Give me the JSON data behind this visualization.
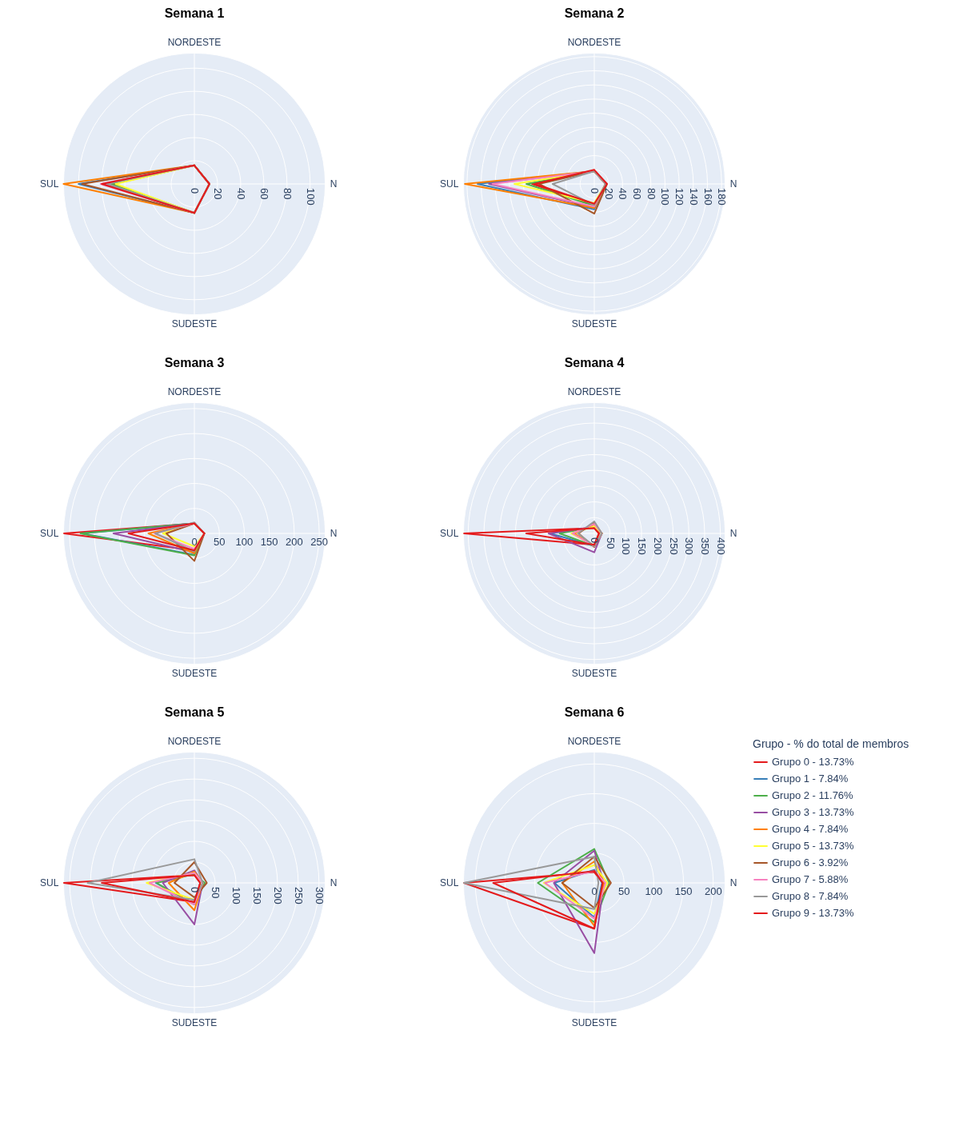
{
  "chart_data": [
    {
      "type": "radar",
      "title": "Semana 1",
      "categories": [
        "NORDESTE",
        "N",
        "SUDESTE",
        "SUL"
      ],
      "ylim": [
        0,
        113
      ],
      "yticks": [
        0,
        20,
        40,
        60,
        80,
        100
      ],
      "grid": true,
      "series": [
        {
          "color": "#e41a1c",
          "values": [
            16,
            13,
            25,
            70
          ]
        },
        {
          "color": "#377eb8",
          "values": [
            16,
            13,
            25,
            100
          ]
        },
        {
          "color": "#4daf4a",
          "values": [
            16,
            13,
            25,
            72
          ]
        },
        {
          "color": "#984ea3",
          "values": [
            16,
            13,
            25,
            79
          ]
        },
        {
          "color": "#ff7f00",
          "values": [
            16,
            13,
            25,
            113
          ]
        },
        {
          "color": "#ffff33",
          "values": [
            16,
            13,
            25,
            68
          ]
        },
        {
          "color": "#a65628",
          "values": [
            16,
            13,
            25,
            97
          ]
        },
        {
          "color": "#f781bf",
          "values": [
            16,
            13,
            25,
            81
          ]
        },
        {
          "color": "#999999",
          "values": [
            16,
            13,
            25,
            75
          ]
        },
        {
          "color": "#e41a1c",
          "values": [
            16,
            13,
            25,
            80
          ]
        }
      ]
    },
    {
      "type": "radar",
      "title": "Semana 2",
      "categories": [
        "NORDESTE",
        "N",
        "SUDESTE",
        "SUL"
      ],
      "ylim": [
        0,
        185
      ],
      "yticks": [
        0,
        20,
        40,
        60,
        80,
        100,
        120,
        140,
        160,
        180
      ],
      "grid": true,
      "series": [
        {
          "color": "#e41a1c",
          "values": [
            18,
            16,
            30,
            88
          ]
        },
        {
          "color": "#377eb8",
          "values": [
            18,
            16,
            36,
            165
          ]
        },
        {
          "color": "#4daf4a",
          "values": [
            18,
            16,
            31,
            96
          ]
        },
        {
          "color": "#984ea3",
          "values": [
            18,
            16,
            33,
            149
          ]
        },
        {
          "color": "#ff7f00",
          "values": [
            18,
            16,
            34,
            183
          ]
        },
        {
          "color": "#ffff33",
          "values": [
            18,
            16,
            27,
            113
          ]
        },
        {
          "color": "#a65628",
          "values": [
            18,
            18,
            42,
            78
          ]
        },
        {
          "color": "#f781bf",
          "values": [
            18,
            16,
            32,
            144
          ]
        },
        {
          "color": "#999999",
          "values": [
            18,
            16,
            30,
            59
          ]
        },
        {
          "color": "#e41a1c",
          "values": [
            20,
            18,
            28,
            84
          ]
        }
      ]
    },
    {
      "type": "radar",
      "title": "Semana 3",
      "categories": [
        "NORDESTE",
        "N",
        "SUDESTE",
        "SUL"
      ],
      "ylim": [
        0,
        262
      ],
      "yticks": [
        0,
        50,
        100,
        150,
        200,
        250
      ],
      "grid": true,
      "series": [
        {
          "color": "#e41a1c",
          "values": [
            20,
            20,
            34,
            261
          ]
        },
        {
          "color": "#377eb8",
          "values": [
            20,
            20,
            43,
            225
          ]
        },
        {
          "color": "#4daf4a",
          "values": [
            20,
            20,
            44,
            228
          ]
        },
        {
          "color": "#984ea3",
          "values": [
            20,
            20,
            38,
            162
          ]
        },
        {
          "color": "#ff7f00",
          "values": [
            20,
            20,
            40,
            92
          ]
        },
        {
          "color": "#ffff33",
          "values": [
            20,
            20,
            26,
            63
          ]
        },
        {
          "color": "#a65628",
          "values": [
            20,
            20,
            55,
            56
          ]
        },
        {
          "color": "#f781bf",
          "values": [
            20,
            20,
            31,
            80
          ]
        },
        {
          "color": "#999999",
          "values": [
            22,
            20,
            36,
            78
          ]
        },
        {
          "color": "#e41a1c",
          "values": [
            20,
            20,
            34,
            132
          ]
        }
      ]
    },
    {
      "type": "radar",
      "title": "Semana 4",
      "categories": [
        "NORDESTE",
        "N",
        "SUDESTE",
        "SUL"
      ],
      "ylim": [
        0,
        415
      ],
      "yticks": [
        0,
        50,
        100,
        150,
        200,
        250,
        300,
        350,
        400
      ],
      "grid": true,
      "series": [
        {
          "color": "#e41a1c",
          "values": [
            17,
            15,
            36,
            413
          ]
        },
        {
          "color": "#377eb8",
          "values": [
            20,
            24,
            40,
            140
          ]
        },
        {
          "color": "#4daf4a",
          "values": [
            20,
            24,
            40,
            110
          ]
        },
        {
          "color": "#984ea3",
          "values": [
            20,
            24,
            60,
            145
          ]
        },
        {
          "color": "#ff7f00",
          "values": [
            28,
            24,
            40,
            63
          ]
        },
        {
          "color": "#ffff33",
          "values": [
            22,
            24,
            38,
            73
          ]
        },
        {
          "color": "#a65628",
          "values": [
            35,
            24,
            43,
            50
          ]
        },
        {
          "color": "#f781bf",
          "values": [
            30,
            24,
            40,
            69
          ]
        },
        {
          "color": "#999999",
          "values": [
            38,
            24,
            40,
            52
          ]
        },
        {
          "color": "#e41a1c",
          "values": [
            17,
            15,
            36,
            216
          ]
        }
      ]
    },
    {
      "type": "radar",
      "title": "Semana 5",
      "categories": [
        "NORDESTE",
        "N",
        "SUDESTE",
        "SUL"
      ],
      "ylim": [
        0,
        315
      ],
      "yticks": [
        0,
        50,
        100,
        150,
        200,
        250,
        300
      ],
      "grid": true,
      "series": [
        {
          "color": "#e41a1c",
          "values": [
            19,
            14,
            46,
            314
          ]
        },
        {
          "color": "#377eb8",
          "values": [
            24,
            20,
            52,
            93
          ]
        },
        {
          "color": "#4daf4a",
          "values": [
            21,
            25,
            52,
            91
          ]
        },
        {
          "color": "#984ea3",
          "values": [
            30,
            20,
            100,
            76
          ]
        },
        {
          "color": "#ff7f00",
          "values": [
            27,
            20,
            66,
            62
          ]
        },
        {
          "color": "#ffff33",
          "values": [
            24,
            20,
            41,
            115
          ]
        },
        {
          "color": "#a65628",
          "values": [
            50,
            30,
            35,
            48
          ]
        },
        {
          "color": "#f781bf",
          "values": [
            24,
            20,
            52,
            108
          ]
        },
        {
          "color": "#999999",
          "values": [
            57,
            20,
            41,
            257
          ]
        },
        {
          "color": "#e41a1c",
          "values": [
            19,
            14,
            46,
            223
          ]
        }
      ]
    },
    {
      "type": "radar",
      "title": "Semana 6",
      "categories": [
        "NORDESTE",
        "N",
        "SUDESTE",
        "SUL"
      ],
      "ylim": [
        0,
        220
      ],
      "yticks": [
        0,
        50,
        100,
        150,
        200
      ],
      "grid": true,
      "legend": "right",
      "legend_title": "Grupo - % do total de membros",
      "series": [
        {
          "name": "Grupo 0 - 13.73%",
          "color": "#e41a1c",
          "values": [
            18,
            14,
            77,
            219
          ]
        },
        {
          "name": "Grupo 1 - 7.84%",
          "color": "#377eb8",
          "values": [
            22,
            13,
            58,
            67
          ]
        },
        {
          "name": "Grupo 2 - 11.76%",
          "color": "#4daf4a",
          "values": [
            57,
            25,
            66,
            95
          ]
        },
        {
          "name": "Grupo 3 - 13.73%",
          "color": "#984ea3",
          "values": [
            54,
            16,
            118,
            68
          ]
        },
        {
          "name": "Grupo 4 - 7.84%",
          "color": "#ff7f00",
          "values": [
            36,
            16,
            72,
            54
          ]
        },
        {
          "name": "Grupo 5 - 13.73%",
          "color": "#ffff33",
          "values": [
            30,
            22,
            52,
            85
          ]
        },
        {
          "name": "Grupo 6 - 3.92%",
          "color": "#a65628",
          "values": [
            44,
            28,
            42,
            54
          ]
        },
        {
          "name": "Grupo 7 - 5.88%",
          "color": "#f781bf",
          "values": [
            20,
            19,
            60,
            83
          ]
        },
        {
          "name": "Grupo 8 - 7.84%",
          "color": "#999999",
          "values": [
            44,
            7,
            44,
            219
          ]
        },
        {
          "name": "Grupo 9 - 13.73%",
          "color": "#e41a1c",
          "values": [
            20,
            14,
            77,
            170
          ]
        }
      ]
    }
  ]
}
